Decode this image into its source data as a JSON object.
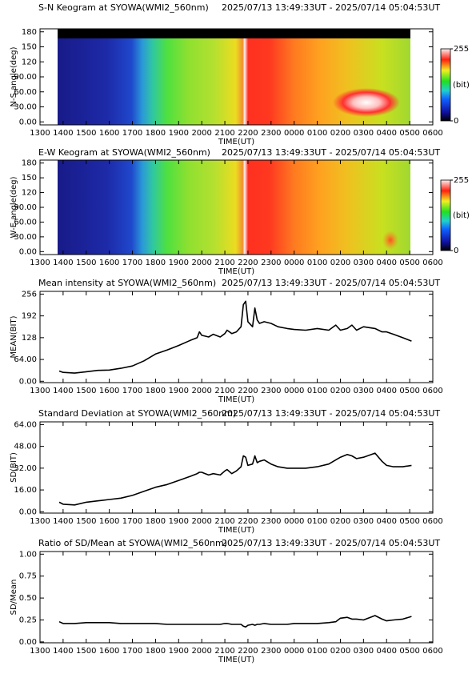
{
  "chart_data": [
    {
      "type": "keogram",
      "title": "S-N Keogram at SYOWA(WMI2_560nm)",
      "subtitle": "2025/07/13 13:49:33UT - 2025/07/14 05:04:53UT",
      "ylabel": "N-S angle(deg)",
      "xlabel": "TIME(UT)",
      "xlim": [
        13,
        30
      ],
      "ylim": [
        -6,
        186
      ],
      "xticks": [
        {
          "value": 13,
          "label": "1300"
        },
        {
          "value": 14,
          "label": "1400"
        },
        {
          "value": 15,
          "label": "1500"
        },
        {
          "value": 16,
          "label": "1600"
        },
        {
          "value": 17,
          "label": "1700"
        },
        {
          "value": 18,
          "label": "1800"
        },
        {
          "value": 19,
          "label": "1900"
        },
        {
          "value": 20,
          "label": "2000"
        },
        {
          "value": 21,
          "label": "2100"
        },
        {
          "value": 22,
          "label": "2200"
        },
        {
          "value": 23,
          "label": "2300"
        },
        {
          "value": 24,
          "label": "0000"
        },
        {
          "value": 25,
          "label": "0100"
        },
        {
          "value": 26,
          "label": "0200"
        },
        {
          "value": 27,
          "label": "0300"
        },
        {
          "value": 28,
          "label": "0400"
        },
        {
          "value": 29,
          "label": "0500"
        },
        {
          "value": 30,
          "label": "0600"
        }
      ],
      "yticks": [
        {
          "value": 0,
          "label": "0.00"
        },
        {
          "value": 30,
          "label": "30.00"
        },
        {
          "value": 60,
          "label": "60.00"
        },
        {
          "value": 90,
          "label": "90.00"
        },
        120,
        150,
        180
      ],
      "cbticks": [
        0,
        255
      ],
      "cblabel": "(bit)"
    },
    {
      "type": "keogram",
      "title": "E-W Keogram at SYOWA(WMI2_560nm)",
      "subtitle": "2025/07/13 13:49:33UT - 2025/07/14 05:04:53UT",
      "ylabel": "W-E angle(deg)",
      "xlabel": "TIME(UT)",
      "xlim": [
        13,
        30
      ],
      "ylim": [
        -6,
        186
      ],
      "xticks": [
        {
          "value": 13,
          "label": "1300"
        },
        {
          "value": 14,
          "label": "1400"
        },
        {
          "value": 15,
          "label": "1500"
        },
        {
          "value": 16,
          "label": "1600"
        },
        {
          "value": 17,
          "label": "1700"
        },
        {
          "value": 18,
          "label": "1800"
        },
        {
          "value": 19,
          "label": "1900"
        },
        {
          "value": 20,
          "label": "2000"
        },
        {
          "value": 21,
          "label": "2100"
        },
        {
          "value": 22,
          "label": "2200"
        },
        {
          "value": 23,
          "label": "2300"
        },
        {
          "value": 24,
          "label": "0000"
        },
        {
          "value": 25,
          "label": "0100"
        },
        {
          "value": 26,
          "label": "0200"
        },
        {
          "value": 27,
          "label": "0300"
        },
        {
          "value": 28,
          "label": "0400"
        },
        {
          "value": 29,
          "label": "0500"
        },
        {
          "value": 30,
          "label": "0600"
        }
      ],
      "yticks": [
        {
          "value": 0,
          "label": "0.00"
        },
        {
          "value": 30,
          "label": "30.00"
        },
        {
          "value": 60,
          "label": "60.00"
        },
        {
          "value": 90,
          "label": "90.00"
        },
        120,
        150,
        180
      ],
      "cbticks": [
        0,
        255
      ],
      "cblabel": "(bit)"
    },
    {
      "type": "line",
      "title": "Mean intensity at SYOWA(WMI2_560nm)",
      "subtitle": "2025/07/13 13:49:33UT - 2025/07/14 05:04:53UT",
      "ylabel": "MEAN(BIT)",
      "xlabel": "TIME(UT)",
      "xlim": [
        13,
        30
      ],
      "ylim": [
        -4,
        264
      ],
      "color": "#000000",
      "xticks": [
        {
          "value": 13,
          "label": "1300"
        },
        {
          "value": 14,
          "label": "1400"
        },
        {
          "value": 15,
          "label": "1500"
        },
        {
          "value": 16,
          "label": "1600"
        },
        {
          "value": 17,
          "label": "1700"
        },
        {
          "value": 18,
          "label": "1800"
        },
        {
          "value": 19,
          "label": "1900"
        },
        {
          "value": 20,
          "label": "2000"
        },
        {
          "value": 21,
          "label": "2100"
        },
        {
          "value": 22,
          "label": "2200"
        },
        {
          "value": 23,
          "label": "2300"
        },
        {
          "value": 24,
          "label": "0000"
        },
        {
          "value": 25,
          "label": "0100"
        },
        {
          "value": 26,
          "label": "0200"
        },
        {
          "value": 27,
          "label": "0300"
        },
        {
          "value": 28,
          "label": "0400"
        },
        {
          "value": 29,
          "label": "0500"
        },
        {
          "value": 30,
          "label": "0600"
        }
      ],
      "yticks": [
        {
          "value": 0,
          "label": "0.00"
        },
        {
          "value": 64,
          "label": "64.00"
        },
        128,
        192,
        256
      ],
      "x": [
        13.83,
        14,
        14.5,
        15,
        15.5,
        16,
        16.5,
        17,
        17.5,
        18,
        18.5,
        19,
        19.5,
        19.8,
        19.9,
        20,
        20.3,
        20.5,
        20.8,
        21,
        21.1,
        21.3,
        21.5,
        21.7,
        21.8,
        21.9,
        22,
        22.2,
        22.3,
        22.4,
        22.5,
        22.7,
        23,
        23.3,
        23.7,
        24,
        24.5,
        25,
        25.5,
        25.8,
        26,
        26.3,
        26.5,
        26.7,
        27,
        27.5,
        27.8,
        28,
        28.3,
        28.7,
        29.08
      ],
      "values": [
        30,
        26,
        24,
        28,
        32,
        33,
        38,
        45,
        60,
        80,
        92,
        105,
        120,
        128,
        145,
        135,
        130,
        138,
        130,
        140,
        150,
        140,
        145,
        160,
        225,
        235,
        175,
        160,
        215,
        180,
        170,
        175,
        170,
        160,
        155,
        152,
        150,
        155,
        150,
        165,
        150,
        155,
        165,
        150,
        160,
        155,
        145,
        145,
        138,
        128,
        118
      ]
    },
    {
      "type": "line",
      "title": "Standard Deviation at SYOWA(WMI2_560nm)",
      "subtitle": "2025/07/13 13:49:33UT - 2025/07/14 05:04:53UT",
      "ylabel": "SD(BIT)",
      "xlabel": "TIME(UT)",
      "xlim": [
        13,
        30
      ],
      "ylim": [
        -1,
        66
      ],
      "color": "#000000",
      "xticks": [
        {
          "value": 13,
          "label": "1300"
        },
        {
          "value": 14,
          "label": "1400"
        },
        {
          "value": 15,
          "label": "1500"
        },
        {
          "value": 16,
          "label": "1600"
        },
        {
          "value": 17,
          "label": "1700"
        },
        {
          "value": 18,
          "label": "1800"
        },
        {
          "value": 19,
          "label": "1900"
        },
        {
          "value": 20,
          "label": "2000"
        },
        {
          "value": 21,
          "label": "2100"
        },
        {
          "value": 22,
          "label": "2200"
        },
        {
          "value": 23,
          "label": "2300"
        },
        {
          "value": 24,
          "label": "0000"
        },
        {
          "value": 25,
          "label": "0100"
        },
        {
          "value": 26,
          "label": "0200"
        },
        {
          "value": 27,
          "label": "0300"
        },
        {
          "value": 28,
          "label": "0400"
        },
        {
          "value": 29,
          "label": "0500"
        },
        {
          "value": 30,
          "label": "0600"
        }
      ],
      "yticks": [
        {
          "value": 0,
          "label": "0.00"
        },
        {
          "value": 16,
          "label": "16.00"
        },
        {
          "value": 32,
          "label": "32.00"
        },
        {
          "value": 48,
          "label": "48.00"
        },
        {
          "value": 64,
          "label": "64.00"
        }
      ],
      "x": [
        13.83,
        14,
        14.5,
        15,
        15.5,
        16,
        16.5,
        17,
        17.5,
        18,
        18.5,
        19,
        19.5,
        19.8,
        19.9,
        20,
        20.3,
        20.5,
        20.8,
        21,
        21.1,
        21.3,
        21.5,
        21.7,
        21.8,
        21.9,
        22,
        22.2,
        22.3,
        22.4,
        22.5,
        22.7,
        23,
        23.3,
        23.7,
        24,
        24.5,
        25,
        25.5,
        25.8,
        26,
        26.3,
        26.5,
        26.7,
        27,
        27.5,
        27.8,
        28,
        28.3,
        28.7,
        29.08
      ],
      "values": [
        7,
        5.5,
        5,
        7,
        8,
        9,
        10,
        12,
        15,
        18,
        20,
        23,
        26,
        28,
        29,
        29,
        27,
        28,
        27,
        30,
        31,
        28,
        30,
        33,
        41,
        40,
        34,
        35,
        41,
        36,
        37,
        38,
        35,
        33,
        32,
        32,
        32,
        33,
        35,
        38,
        40,
        42,
        41,
        39,
        40,
        43,
        37,
        34,
        33,
        33,
        34
      ]
    },
    {
      "type": "line",
      "title": "Ratio of SD/Mean at SYOWA(WMI2_560nm)",
      "subtitle": "2025/07/13 13:49:33UT - 2025/07/14 05:04:53UT",
      "ylabel": "SD/Mean",
      "xlabel": "TIME(UT)",
      "xlim": [
        13,
        30
      ],
      "ylim": [
        -0.01,
        1.03
      ],
      "color": "#000000",
      "xticks": [
        {
          "value": 13,
          "label": "1300"
        },
        {
          "value": 14,
          "label": "1400"
        },
        {
          "value": 15,
          "label": "1500"
        },
        {
          "value": 16,
          "label": "1600"
        },
        {
          "value": 17,
          "label": "1700"
        },
        {
          "value": 18,
          "label": "1800"
        },
        {
          "value": 19,
          "label": "1900"
        },
        {
          "value": 20,
          "label": "2000"
        },
        {
          "value": 21,
          "label": "2100"
        },
        {
          "value": 22,
          "label": "2200"
        },
        {
          "value": 23,
          "label": "2300"
        },
        {
          "value": 24,
          "label": "0000"
        },
        {
          "value": 25,
          "label": "0100"
        },
        {
          "value": 26,
          "label": "0200"
        },
        {
          "value": 27,
          "label": "0300"
        },
        {
          "value": 28,
          "label": "0400"
        },
        {
          "value": 29,
          "label": "0500"
        },
        {
          "value": 30,
          "label": "0600"
        }
      ],
      "yticks": [
        {
          "value": 0,
          "label": "0.00"
        },
        0.25,
        {
          "value": 0.5,
          "label": "0.50"
        },
        0.75,
        {
          "value": 1,
          "label": "1.00"
        }
      ],
      "x": [
        13.83,
        14,
        14.5,
        15,
        15.5,
        16,
        16.5,
        17,
        17.5,
        18,
        18.5,
        19,
        19.5,
        19.8,
        19.9,
        20,
        20.3,
        20.5,
        20.8,
        21,
        21.1,
        21.3,
        21.5,
        21.7,
        21.8,
        21.9,
        22,
        22.2,
        22.3,
        22.4,
        22.5,
        22.7,
        23,
        23.3,
        23.7,
        24,
        24.5,
        25,
        25.5,
        25.8,
        26,
        26.3,
        26.5,
        26.7,
        27,
        27.5,
        27.8,
        28,
        28.3,
        28.7,
        29.08
      ],
      "values": [
        0.23,
        0.21,
        0.21,
        0.22,
        0.22,
        0.22,
        0.21,
        0.21,
        0.21,
        0.21,
        0.2,
        0.2,
        0.2,
        0.2,
        0.2,
        0.2,
        0.2,
        0.2,
        0.2,
        0.21,
        0.21,
        0.2,
        0.2,
        0.2,
        0.18,
        0.17,
        0.19,
        0.2,
        0.19,
        0.2,
        0.2,
        0.21,
        0.2,
        0.2,
        0.2,
        0.21,
        0.21,
        0.21,
        0.22,
        0.23,
        0.27,
        0.28,
        0.26,
        0.26,
        0.25,
        0.3,
        0.26,
        0.24,
        0.25,
        0.26,
        0.29
      ]
    }
  ]
}
